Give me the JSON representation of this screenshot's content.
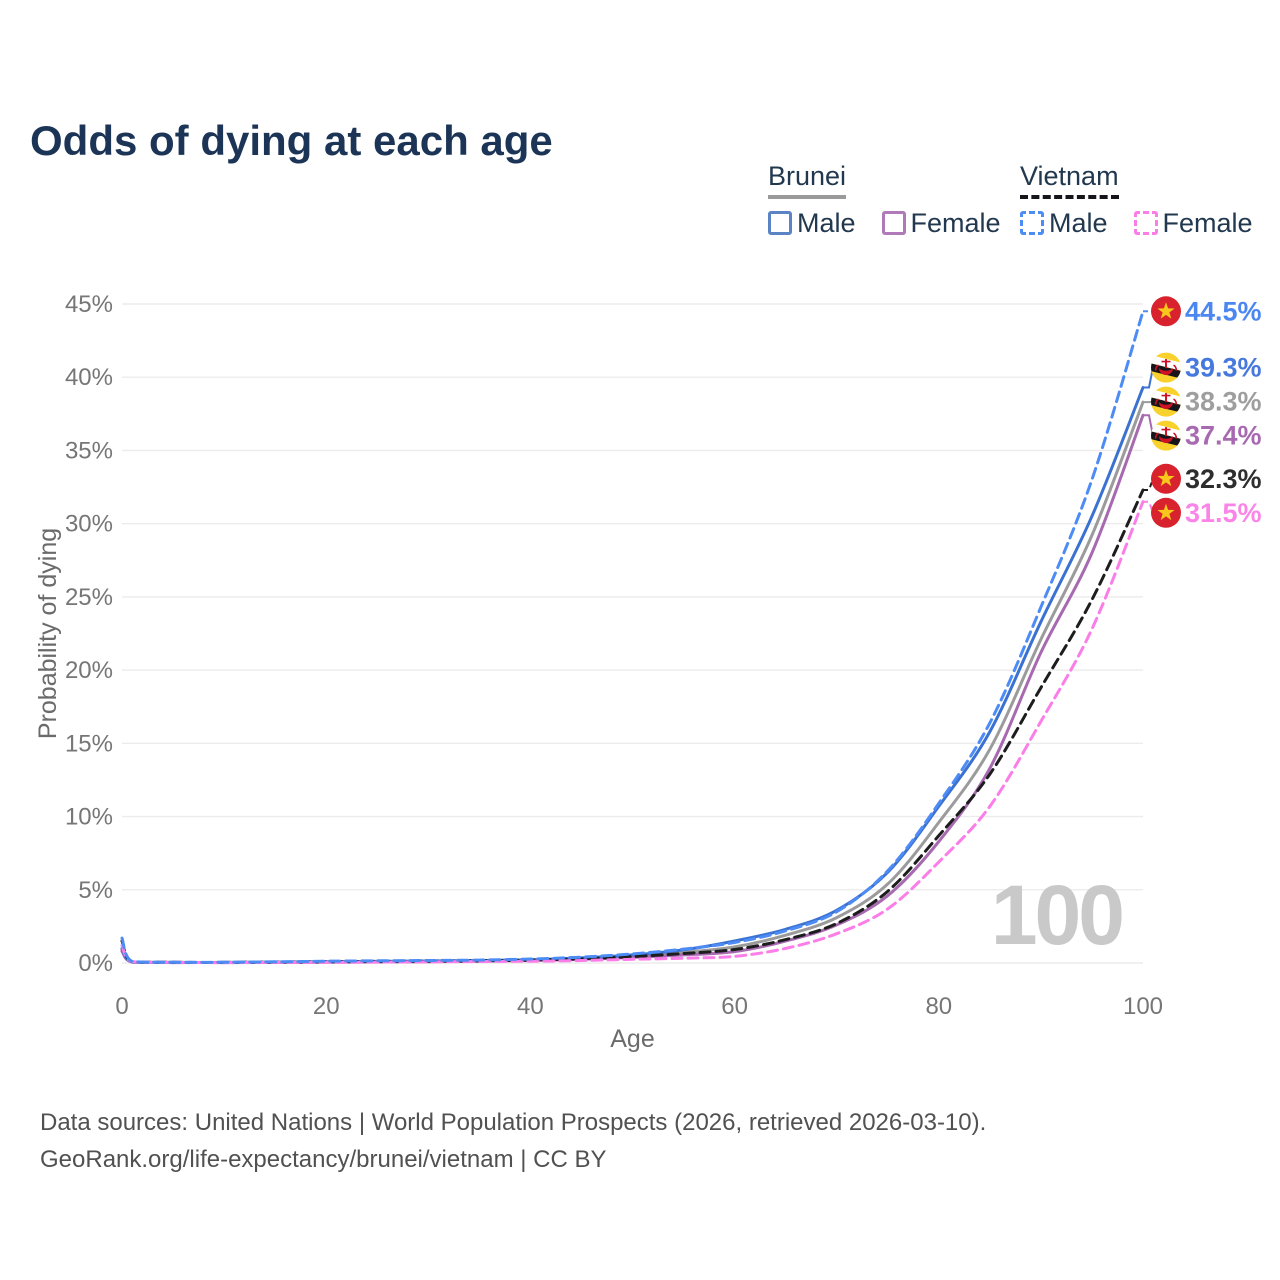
{
  "title": "Odds of dying at each age",
  "legend": {
    "groups": [
      {
        "country": "Brunei",
        "line_style": "solid",
        "underline_color": "#9a9a9a",
        "items": [
          {
            "label": "Male",
            "color": "#5b84c4",
            "dashed": false
          },
          {
            "label": "Female",
            "color": "#b07ab8",
            "dashed": false
          }
        ]
      },
      {
        "country": "Vietnam",
        "line_style": "dashed",
        "underline_color": "#15151a",
        "items": [
          {
            "label": "Male",
            "color": "#4d8bf5",
            "dashed": true
          },
          {
            "label": "Female",
            "color": "#fa7de8",
            "dashed": true
          }
        ]
      }
    ]
  },
  "watermark": "100",
  "footer": {
    "line1": "Data sources: United Nations | World Population Prospects (2026, retrieved 2026-03-10).",
    "line2": "GeoRank.org/life-expectancy/brunei/vietnam | CC BY"
  },
  "chart_data": {
    "type": "line",
    "title": "Odds of dying at each age",
    "xlabel": "Age",
    "ylabel": "Probability of dying",
    "units": "percent",
    "xlim": [
      0,
      100
    ],
    "ylim_pct": [
      0,
      45
    ],
    "x_ticks": [
      0,
      20,
      40,
      60,
      80,
      100
    ],
    "y_ticks_pct": [
      0,
      5,
      10,
      15,
      20,
      25,
      30,
      35,
      40,
      45
    ],
    "grid": "horizontal",
    "legend_position": "top-right",
    "ages": [
      0,
      1,
      5,
      10,
      15,
      20,
      25,
      30,
      35,
      40,
      45,
      50,
      55,
      60,
      65,
      70,
      75,
      80,
      85,
      90,
      95,
      100
    ],
    "series": [
      {
        "id": "brunei-both",
        "country": "Brunei",
        "sex": "Both sexes",
        "color": "#9b9b9b",
        "label_color": "#9e9e9e",
        "dashed": false,
        "flag": "brunei",
        "end_value_pct": 38.3,
        "end_label": "38.3%",
        "values_pct": [
          0.9,
          0.065,
          0.035,
          0.035,
          0.05,
          0.07,
          0.09,
          0.11,
          0.15,
          0.2,
          0.3,
          0.47,
          0.72,
          1.1,
          1.9,
          3.1,
          5.4,
          9.6,
          14.6,
          22.1,
          29.2,
          38.3
        ]
      },
      {
        "id": "brunei-female",
        "country": "Brunei",
        "sex": "Female",
        "color": "#a76ab0",
        "label_color": "#a76ab0",
        "dashed": false,
        "flag": "brunei",
        "end_value_pct": 37.4,
        "end_label": "37.4%",
        "values_pct": [
          0.8,
          0.06,
          0.03,
          0.03,
          0.04,
          0.05,
          0.07,
          0.09,
          0.12,
          0.17,
          0.25,
          0.38,
          0.55,
          0.78,
          1.5,
          2.6,
          4.6,
          8.3,
          13.3,
          21.2,
          28.0,
          37.4
        ]
      },
      {
        "id": "brunei-male",
        "country": "Brunei",
        "sex": "Male",
        "color": "#3b72d2",
        "label_color": "#4678dd",
        "dashed": false,
        "flag": "brunei",
        "end_value_pct": 39.3,
        "end_label": "39.3%",
        "values_pct": [
          1.0,
          0.07,
          0.04,
          0.04,
          0.06,
          0.09,
          0.11,
          0.13,
          0.17,
          0.22,
          0.35,
          0.55,
          0.9,
          1.5,
          2.3,
          3.6,
          6.2,
          10.7,
          15.8,
          23.3,
          30.5,
          39.3
        ]
      },
      {
        "id": "vietnam-both",
        "country": "Vietnam",
        "sex": "Both sexes",
        "color": "#1d1d1d",
        "label_color": "#2e2e2e",
        "dashed": true,
        "flag": "vietnam",
        "end_value_pct": 32.3,
        "end_label": "32.3%",
        "values_pct": [
          1.5,
          0.09,
          0.045,
          0.04,
          0.06,
          0.09,
          0.11,
          0.13,
          0.15,
          0.2,
          0.29,
          0.44,
          0.65,
          0.92,
          1.6,
          2.7,
          4.9,
          8.7,
          12.9,
          18.8,
          24.8,
          32.3
        ]
      },
      {
        "id": "vietnam-female",
        "country": "Vietnam",
        "sex": "Female",
        "color": "#fa7de8",
        "label_color": "#fa84e8",
        "dashed": true,
        "flag": "vietnam",
        "end_value_pct": 31.5,
        "end_label": "31.5%",
        "values_pct": [
          1.2,
          0.08,
          0.04,
          0.03,
          0.04,
          0.05,
          0.06,
          0.08,
          0.1,
          0.12,
          0.17,
          0.25,
          0.33,
          0.45,
          1.0,
          2.0,
          3.7,
          6.9,
          10.7,
          16.5,
          22.8,
          31.5
        ]
      },
      {
        "id": "vietnam-male",
        "country": "Vietnam",
        "sex": "Male",
        "color": "#4d8bf5",
        "label_color": "#4c86f0",
        "dashed": true,
        "flag": "vietnam",
        "end_value_pct": 44.5,
        "end_label": "44.5%",
        "values_pct": [
          1.7,
          0.1,
          0.05,
          0.05,
          0.08,
          0.12,
          0.15,
          0.17,
          0.2,
          0.27,
          0.4,
          0.62,
          0.95,
          1.4,
          2.2,
          3.5,
          6.3,
          10.9,
          16.4,
          24.3,
          33.0,
          44.5
        ]
      }
    ]
  }
}
